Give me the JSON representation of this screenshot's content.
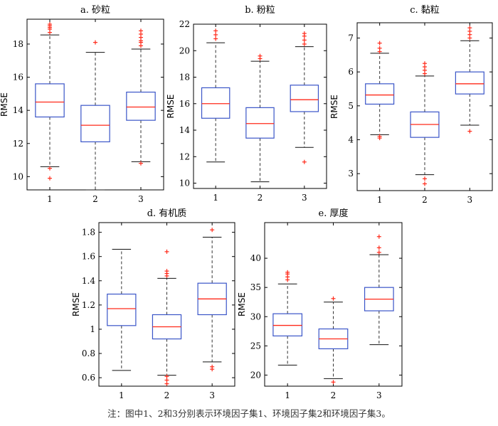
{
  "note": "注：图中1、2和3分别表示环境因子集1、环境因子集2和环境因子集3。",
  "chart_data": [
    {
      "type": "box",
      "title": "a. 砂粒",
      "ylabel": "RMSE",
      "categories": [
        "1",
        "2",
        "3"
      ],
      "ylim": [
        9.2,
        19.5
      ],
      "yticks": [
        10,
        12,
        14,
        16,
        18
      ],
      "boxes": [
        {
          "category": "1",
          "whislo": 10.6,
          "q1": 13.6,
          "med": 14.5,
          "q3": 15.6,
          "whishi": 18.55,
          "outliers": [
            9.9,
            10.5,
            18.7,
            18.9,
            19.0,
            19.1,
            19.2
          ]
        },
        {
          "category": "2",
          "whislo": 9.2,
          "q1": 12.1,
          "med": 13.1,
          "q3": 14.3,
          "whishi": 17.5,
          "outliers": [
            18.1
          ]
        },
        {
          "category": "3",
          "whislo": 10.9,
          "q1": 13.4,
          "med": 14.2,
          "q3": 15.1,
          "whishi": 17.7,
          "outliers": [
            10.8,
            17.9,
            18.1,
            18.2,
            18.4,
            18.6,
            18.8
          ]
        }
      ]
    },
    {
      "type": "box",
      "title": "b. 粉粒",
      "ylabel": "RMSE",
      "categories": [
        "1",
        "2",
        "3"
      ],
      "ylim": [
        9.6,
        22.0
      ],
      "yticks": [
        10,
        12,
        14,
        16,
        18,
        20,
        22
      ],
      "boxes": [
        {
          "category": "1",
          "whislo": 11.6,
          "q1": 14.9,
          "med": 16.0,
          "q3": 17.2,
          "whishi": 20.6,
          "outliers": [
            20.9,
            21.2,
            21.5
          ]
        },
        {
          "category": "2",
          "whislo": 10.1,
          "q1": 13.4,
          "med": 14.5,
          "q3": 15.7,
          "whishi": 19.2,
          "outliers": [
            19.4,
            19.6
          ]
        },
        {
          "category": "3",
          "whislo": 12.7,
          "q1": 15.4,
          "med": 16.3,
          "q3": 17.4,
          "whishi": 20.3,
          "outliers": [
            11.6,
            20.5,
            20.8,
            21.1,
            21.3
          ]
        }
      ]
    },
    {
      "type": "box",
      "title": "c. 黏粒",
      "ylabel": "RMSE",
      "categories": [
        "1",
        "2",
        "3"
      ],
      "ylim": [
        2.5,
        7.45
      ],
      "yticks": [
        3,
        4,
        5,
        6,
        7
      ],
      "boxes": [
        {
          "category": "1",
          "whislo": 4.15,
          "q1": 5.05,
          "med": 5.32,
          "q3": 5.65,
          "whishi": 6.55,
          "outliers": [
            4.05,
            4.1,
            6.6,
            6.7,
            6.85
          ]
        },
        {
          "category": "2",
          "whislo": 2.97,
          "q1": 4.07,
          "med": 4.45,
          "q3": 4.82,
          "whishi": 5.88,
          "outliers": [
            2.7,
            2.85,
            5.95,
            6.05,
            6.15,
            6.25
          ]
        },
        {
          "category": "3",
          "whislo": 4.43,
          "q1": 5.35,
          "med": 5.65,
          "q3": 6.0,
          "whishi": 6.92,
          "outliers": [
            4.25,
            7.0,
            7.1,
            7.2,
            7.3
          ]
        }
      ]
    },
    {
      "type": "box",
      "title": "d. 有机质",
      "ylabel": "RMSE",
      "categories": [
        "1",
        "2",
        "3"
      ],
      "ylim": [
        0.53,
        1.88
      ],
      "yticks": [
        0.6,
        0.8,
        1,
        1.2,
        1.4,
        1.6,
        1.8
      ],
      "ytick_labels": [
        "0.6",
        "0.8",
        "1",
        "1.2",
        "1.4",
        "1.6",
        "1.8"
      ],
      "boxes": [
        {
          "category": "1",
          "whislo": 0.66,
          "q1": 1.03,
          "med": 1.17,
          "q3": 1.29,
          "whishi": 1.66,
          "outliers": []
        },
        {
          "category": "2",
          "whislo": 0.62,
          "q1": 0.92,
          "med": 1.02,
          "q3": 1.12,
          "whishi": 1.42,
          "outliers": [
            0.55,
            0.58,
            0.61,
            1.44,
            1.46,
            1.48,
            1.64
          ]
        },
        {
          "category": "3",
          "whislo": 0.73,
          "q1": 1.12,
          "med": 1.25,
          "q3": 1.38,
          "whishi": 1.76,
          "outliers": [
            0.67,
            0.69,
            1.82
          ]
        }
      ]
    },
    {
      "type": "box",
      "title": "e. 厚度",
      "ylabel": "RMSE",
      "categories": [
        "1",
        "2",
        "3"
      ],
      "ylim": [
        18.1,
        46.1
      ],
      "yticks": [
        20,
        25,
        30,
        35,
        40
      ],
      "boxes": [
        {
          "category": "1",
          "whislo": 21.7,
          "q1": 26.7,
          "med": 28.5,
          "q3": 30.5,
          "whishi": 35.6,
          "outliers": [
            36.3,
            36.8,
            37.3,
            37.6
          ]
        },
        {
          "category": "2",
          "whislo": 19.4,
          "q1": 24.5,
          "med": 26.2,
          "q3": 27.9,
          "whishi": 32.5,
          "outliers": [
            18.8,
            33.1
          ]
        },
        {
          "category": "3",
          "whislo": 25.2,
          "q1": 31.0,
          "med": 33.0,
          "q3": 35.0,
          "whishi": 40.6,
          "outliers": [
            41.0,
            41.8,
            43.7
          ]
        }
      ]
    }
  ]
}
